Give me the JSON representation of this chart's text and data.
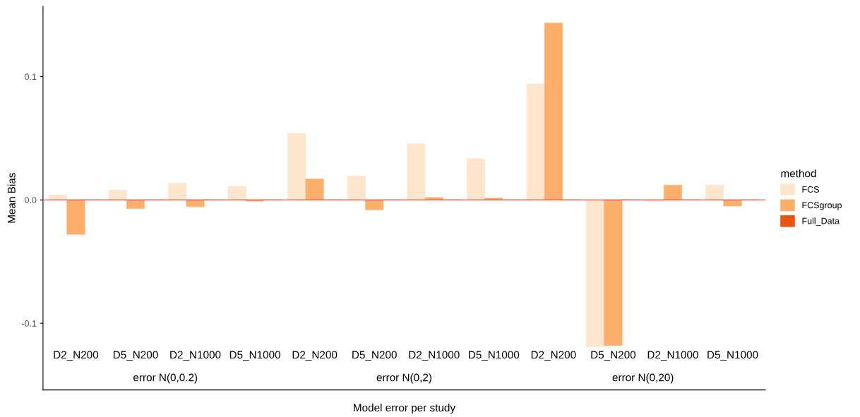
{
  "chart_data": {
    "type": "bar",
    "xlabel": "Model error per study",
    "ylabel": "Mean Bias",
    "legend_title": "method",
    "categories": [
      "D2_N200",
      "D5_N200",
      "D2_N1000",
      "D5_N1000",
      "D2_N200",
      "D5_N200",
      "D2_N1000",
      "D5_N1000",
      "D2_N200",
      "D5_N200",
      "D2_N1000",
      "D5_N1000"
    ],
    "series": [
      {
        "name": "FCS",
        "color": "#fee6ce",
        "values": [
          0.004,
          0.008,
          0.0135,
          0.011,
          0.054,
          0.0195,
          0.0455,
          0.0335,
          0.094,
          -0.119,
          -0.001,
          0.012
        ]
      },
      {
        "name": "FCSgroup",
        "color": "#fdae6b",
        "values": [
          -0.028,
          -0.007,
          -0.0055,
          -0.001,
          0.017,
          -0.008,
          0.002,
          0.0015,
          0.1435,
          -0.118,
          0.012,
          -0.005
        ]
      },
      {
        "name": "Full_Data",
        "color": "#e6550d",
        "values": [
          0,
          0,
          0,
          0,
          0,
          0,
          0,
          0,
          0,
          0,
          0,
          0
        ]
      }
    ],
    "annotations": [
      "error N(0,0.2)",
      "error N(0,2)",
      "error N(0,20)"
    ],
    "ylim": [
      -0.154,
      0.157
    ],
    "yticks": [
      {
        "value": -0.1,
        "label": "-0.1"
      },
      {
        "value": 0,
        "label": "0.0"
      },
      0.1
    ],
    "ref_lines": [
      {
        "axis": "y",
        "value": 0,
        "color": "#f8484a"
      }
    ],
    "grid": false,
    "legend": "right"
  }
}
